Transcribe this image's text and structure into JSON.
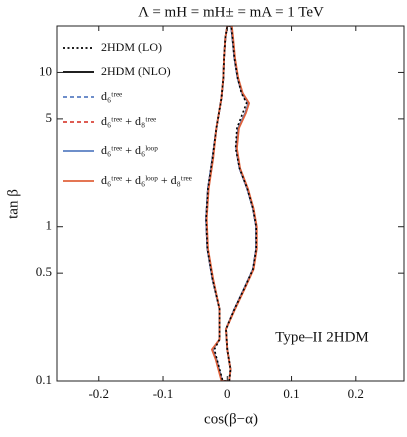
{
  "chart_data": {
    "type": "line",
    "title": "Λ = mH = mH± = mA = 1 TeV",
    "x_label": "cos(β−α)",
    "y_label": "tan β",
    "annotation": "Type–II 2HDM",
    "xlim": [
      -0.265,
      0.275
    ],
    "xticks": [
      -0.2,
      -0.1,
      0.0,
      0.1,
      0.2
    ],
    "ylim": [
      0.1,
      20
    ],
    "yticks": [
      0.1,
      0.5,
      1,
      5,
      10
    ],
    "log_y": true,
    "series": [
      {
        "name": "2HDM (LO)",
        "color": "#000000",
        "dash": "dotted",
        "x": [
          0.003,
          0.005,
          0.0,
          -0.002,
          0.011,
          0.026,
          0.04,
          0.045,
          0.045,
          0.04,
          0.031,
          0.019,
          0.013,
          0.015,
          0.024,
          0.03,
          0.022,
          0.016,
          0.011,
          0.008,
          0.006,
          0.0,
          -0.003,
          -0.005,
          -0.006,
          -0.009,
          -0.017,
          -0.023,
          -0.03,
          -0.033,
          -0.031,
          -0.023,
          -0.012,
          -0.012,
          -0.02,
          -0.016,
          -0.007
        ],
        "values": [
          0.1,
          0.119,
          0.16,
          0.217,
          0.292,
          0.395,
          0.53,
          0.72,
          1.0,
          1.31,
          1.77,
          2.39,
          3.22,
          4.35,
          5.45,
          6.33,
          7.35,
          9.2,
          12.4,
          16.8,
          20,
          20,
          16.8,
          12.4,
          9.2,
          6.82,
          4.35,
          2.77,
          1.77,
          1.13,
          0.72,
          0.458,
          0.292,
          0.186,
          0.16,
          0.138,
          0.1
        ]
      },
      {
        "name": "2HDM (NLO)",
        "color": "#000000",
        "dash": "solid",
        "x": [
          0.003,
          0.005,
          0.0,
          -0.002,
          0.011,
          0.026,
          0.04,
          0.045,
          0.045,
          0.04,
          0.031,
          0.019,
          0.014,
          0.017,
          0.028,
          0.033,
          0.023,
          0.016,
          0.011,
          0.008,
          0.006,
          0.0,
          -0.003,
          -0.005,
          -0.006,
          -0.009,
          -0.017,
          -0.023,
          -0.03,
          -0.033,
          -0.031,
          -0.023,
          -0.012,
          -0.012,
          -0.023,
          -0.017,
          -0.008
        ],
        "values": [
          0.1,
          0.119,
          0.16,
          0.217,
          0.292,
          0.395,
          0.53,
          0.72,
          1.0,
          1.31,
          1.77,
          2.39,
          3.22,
          4.35,
          5.45,
          6.33,
          7.35,
          9.2,
          12.4,
          16.8,
          20,
          20,
          16.8,
          12.4,
          9.2,
          6.82,
          4.35,
          2.77,
          1.77,
          1.13,
          0.72,
          0.458,
          0.292,
          0.186,
          0.16,
          0.138,
          0.1
        ]
      },
      {
        "name": "d₆ᵗʳᵉᵉ",
        "color": "#5a7fc2",
        "dash": "dashed",
        "x": [
          0.003,
          0.005,
          0.0,
          -0.002,
          0.011,
          0.026,
          0.04,
          0.045,
          0.045,
          0.04,
          0.031,
          0.019,
          0.014,
          0.017,
          0.028,
          0.033,
          0.023,
          0.016,
          0.011,
          0.008,
          0.006,
          0.0,
          -0.003,
          -0.005,
          -0.006,
          -0.009,
          -0.017,
          -0.023,
          -0.03,
          -0.033,
          -0.031,
          -0.023,
          -0.012,
          -0.012,
          -0.023,
          -0.017,
          -0.008
        ],
        "values": [
          0.1,
          0.119,
          0.16,
          0.217,
          0.292,
          0.395,
          0.53,
          0.72,
          1.0,
          1.31,
          1.77,
          2.39,
          3.22,
          4.35,
          5.45,
          6.33,
          7.35,
          9.2,
          12.4,
          16.8,
          20,
          20,
          16.8,
          12.4,
          9.2,
          6.82,
          4.35,
          2.77,
          1.77,
          1.13,
          0.72,
          0.458,
          0.292,
          0.186,
          0.16,
          0.138,
          0.1
        ]
      },
      {
        "name": "d₆ᵗʳᵉᵉ + d₈ᵗʳᵉᵉ",
        "color": "#d9453b",
        "dash": "dashed",
        "x": [
          0.003,
          0.005,
          0.0,
          -0.002,
          0.011,
          0.026,
          0.04,
          0.045,
          0.045,
          0.04,
          0.031,
          0.019,
          0.014,
          0.017,
          0.028,
          0.033,
          0.023,
          0.016,
          0.011,
          0.008,
          0.006,
          0.0,
          -0.003,
          -0.005,
          -0.006,
          -0.009,
          -0.017,
          -0.023,
          -0.03,
          -0.033,
          -0.031,
          -0.023,
          -0.012,
          -0.012,
          -0.023,
          -0.017,
          -0.008
        ],
        "values": [
          0.1,
          0.119,
          0.16,
          0.217,
          0.292,
          0.395,
          0.53,
          0.72,
          1.0,
          1.31,
          1.77,
          2.39,
          3.22,
          4.35,
          5.45,
          6.33,
          7.35,
          9.2,
          12.4,
          16.8,
          20,
          20,
          16.8,
          12.4,
          9.2,
          6.82,
          4.35,
          2.77,
          1.77,
          1.13,
          0.72,
          0.458,
          0.292,
          0.186,
          0.16,
          0.138,
          0.1
        ]
      },
      {
        "name": "d₆ᵗʳᵉᵉ + d₆ˡᵒᵒᵖ",
        "color": "#5a7fc2",
        "dash": "solid",
        "x": [
          0.003,
          0.005,
          0.0,
          -0.002,
          0.011,
          0.026,
          0.04,
          0.045,
          0.045,
          0.04,
          0.031,
          0.019,
          0.014,
          0.017,
          0.028,
          0.033,
          0.023,
          0.016,
          0.011,
          0.008,
          0.006,
          0.0,
          -0.003,
          -0.005,
          -0.006,
          -0.009,
          -0.017,
          -0.023,
          -0.03,
          -0.033,
          -0.031,
          -0.023,
          -0.012,
          -0.012,
          -0.023,
          -0.017,
          -0.008
        ],
        "values": [
          0.1,
          0.119,
          0.16,
          0.217,
          0.292,
          0.395,
          0.53,
          0.72,
          1.0,
          1.31,
          1.77,
          2.39,
          3.22,
          4.35,
          5.45,
          6.33,
          7.35,
          9.2,
          12.4,
          16.8,
          20,
          20,
          16.8,
          12.4,
          9.2,
          6.82,
          4.35,
          2.77,
          1.77,
          1.13,
          0.72,
          0.458,
          0.292,
          0.186,
          0.16,
          0.138,
          0.1
        ]
      },
      {
        "name": "d₆ᵗʳᵉᵉ + d₆ˡᵒᵒᵖ + d₈ᵗʳᵉᵉ",
        "color": "#e0633c",
        "dash": "solid",
        "x": [
          0.003,
          0.005,
          0.0,
          -0.002,
          0.012,
          0.027,
          0.041,
          0.046,
          0.046,
          0.041,
          0.032,
          0.02,
          0.015,
          0.018,
          0.029,
          0.034,
          0.024,
          0.017,
          0.012,
          0.009,
          0.007,
          0.0,
          -0.003,
          -0.005,
          -0.006,
          -0.009,
          -0.017,
          -0.022,
          -0.029,
          -0.032,
          -0.03,
          -0.022,
          -0.012,
          -0.012,
          -0.024,
          -0.018,
          -0.009
        ],
        "values": [
          0.1,
          0.119,
          0.16,
          0.217,
          0.292,
          0.395,
          0.53,
          0.72,
          1.0,
          1.31,
          1.77,
          2.39,
          3.22,
          4.35,
          5.45,
          6.33,
          7.35,
          9.2,
          12.4,
          16.8,
          20,
          20,
          16.8,
          12.4,
          9.2,
          6.82,
          4.35,
          2.77,
          1.77,
          1.13,
          0.72,
          0.458,
          0.292,
          0.186,
          0.16,
          0.138,
          0.1
        ]
      }
    ]
  }
}
